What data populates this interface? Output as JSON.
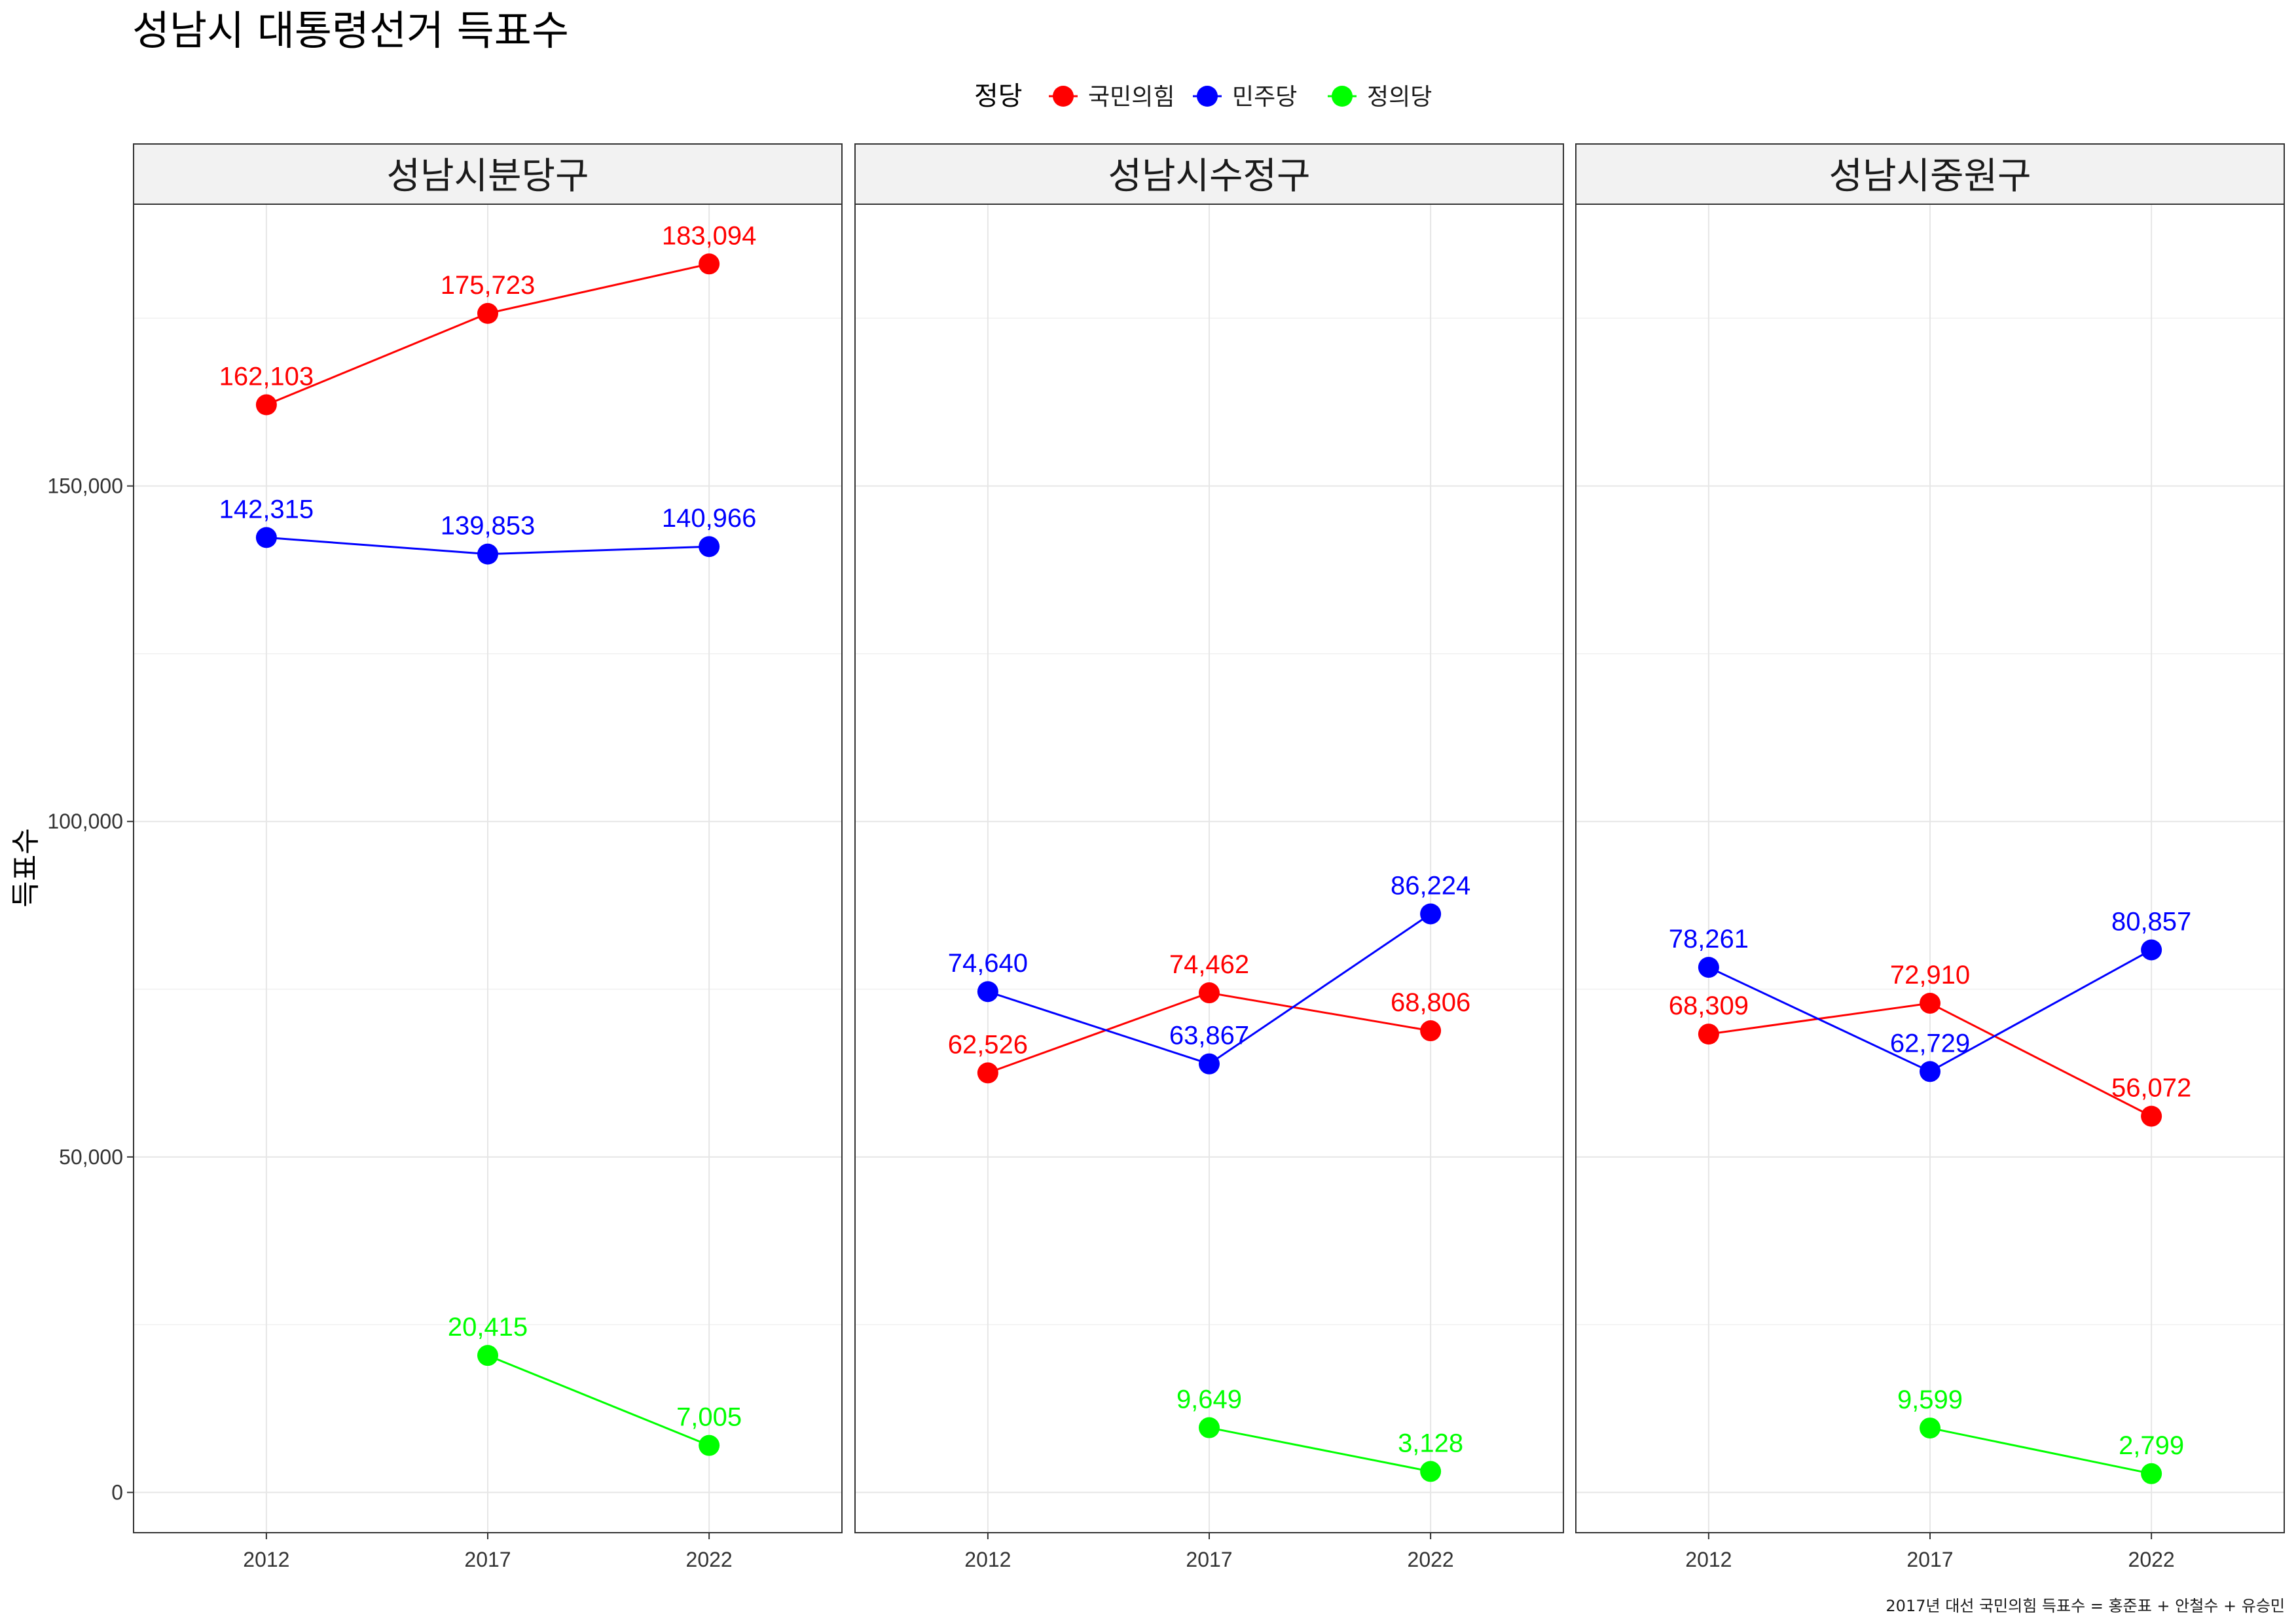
{
  "chart_data": {
    "type": "line",
    "title": "성남시 대통령선거 득표수",
    "ylabel": "득표수",
    "xlabel": "",
    "caption": "2017년 대선 국민의힘 득표수 = 홍준표 + 안철수 + 유승민",
    "legend_title": "정당",
    "legend_position": "top",
    "grid": true,
    "ylim": [
      -6000,
      192000
    ],
    "x": [
      "2012",
      "2017",
      "2022"
    ],
    "y_ticks": [
      0,
      50000,
      100000,
      150000
    ],
    "y_tick_labels": [
      "0",
      "50,000",
      "100,000",
      "150,000"
    ],
    "series_styles": [
      {
        "name": "국민의힘",
        "color": "#FF0000"
      },
      {
        "name": "민주당",
        "color": "#0000FF"
      },
      {
        "name": "정의당",
        "color": "#00FF00"
      }
    ],
    "panels": [
      {
        "name": "성남시분당구",
        "series": [
          {
            "name": "국민의힘",
            "values": [
              162103,
              175723,
              183094
            ],
            "labels": [
              "162,103",
              "175,723",
              "183,094"
            ]
          },
          {
            "name": "민주당",
            "values": [
              142315,
              139853,
              140966
            ],
            "labels": [
              "142,315",
              "139,853",
              "140,966"
            ]
          },
          {
            "name": "정의당",
            "values": [
              null,
              20415,
              7005
            ],
            "labels": [
              null,
              "20,415",
              "7,005"
            ]
          }
        ]
      },
      {
        "name": "성남시수정구",
        "series": [
          {
            "name": "국민의힘",
            "values": [
              62526,
              74462,
              68806
            ],
            "labels": [
              "62,526",
              "74,462",
              "68,806"
            ]
          },
          {
            "name": "민주당",
            "values": [
              74640,
              63867,
              86224
            ],
            "labels": [
              "74,640",
              "63,867",
              "86,224"
            ]
          },
          {
            "name": "정의당",
            "values": [
              null,
              9649,
              3128
            ],
            "labels": [
              null,
              "9,649",
              "3,128"
            ]
          }
        ]
      },
      {
        "name": "성남시중원구",
        "series": [
          {
            "name": "국민의힘",
            "values": [
              68309,
              72910,
              56072
            ],
            "labels": [
              "68,309",
              "72,910",
              "56,072"
            ]
          },
          {
            "name": "민주당",
            "values": [
              78261,
              62729,
              80857
            ],
            "labels": [
              "78,261",
              "62,729",
              "80,857"
            ]
          },
          {
            "name": "정의당",
            "values": [
              null,
              9599,
              2799
            ],
            "labels": [
              null,
              "9,599",
              "2,799"
            ]
          }
        ]
      }
    ]
  }
}
